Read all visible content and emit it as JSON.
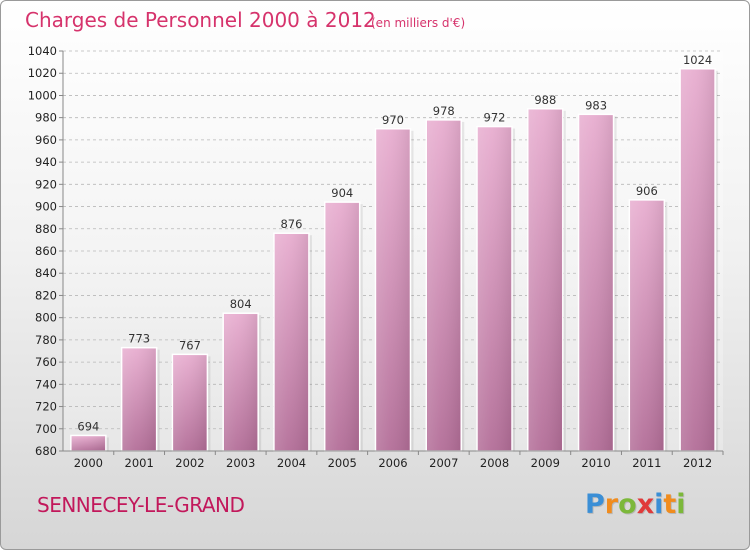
{
  "chart_data": {
    "type": "bar",
    "title": "Charges de Personnel 2000 à 2012",
    "subtitle": "(en milliers d'€)",
    "categories": [
      "2000",
      "2001",
      "2002",
      "2003",
      "2004",
      "2005",
      "2006",
      "2007",
      "2008",
      "2009",
      "2010",
      "2011",
      "2012"
    ],
    "values": [
      694,
      773,
      767,
      804,
      876,
      904,
      970,
      978,
      972,
      988,
      983,
      906,
      1024
    ],
    "ylim": [
      680,
      1040
    ],
    "yticks": [
      680,
      700,
      720,
      740,
      760,
      780,
      800,
      820,
      840,
      860,
      880,
      900,
      920,
      940,
      960,
      980,
      1000,
      1020,
      1040
    ],
    "grid": true,
    "bar_color": "#d98fb8"
  },
  "footer": {
    "commune": "SENNECEY-LE-GRAND",
    "logo": {
      "letters": [
        "P",
        "r",
        "o",
        "x",
        "i",
        "t",
        "i"
      ],
      "colors": [
        "#3b8fd6",
        "#f08c1e",
        "#7cb83a",
        "#e03a3a",
        "#3b8fd6",
        "#f08c1e",
        "#7cb83a"
      ]
    }
  }
}
